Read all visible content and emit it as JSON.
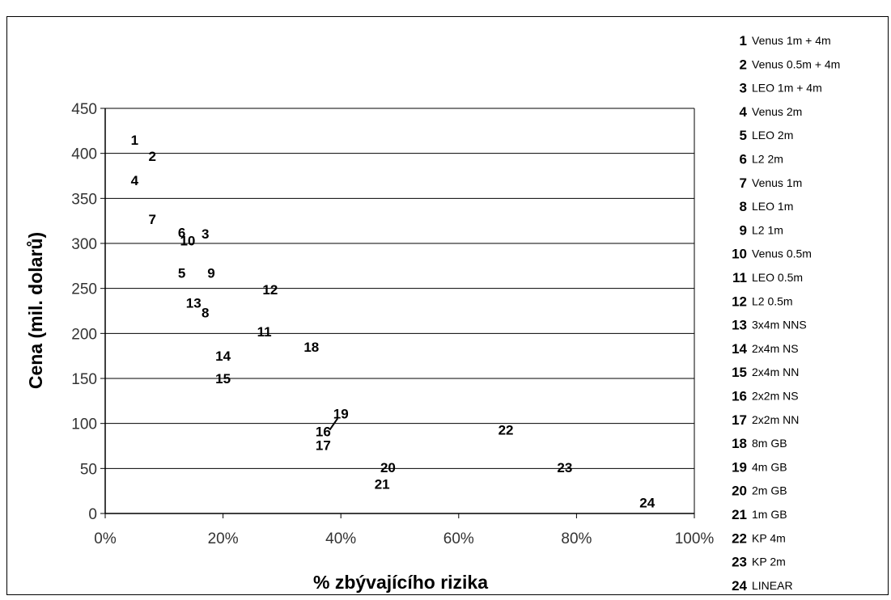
{
  "chart_data": {
    "type": "scatter",
    "xlabel": "% zbývajícího rizika",
    "ylabel": "Cena (mil. dolarů)",
    "xlim": [
      0,
      100
    ],
    "ylim": [
      0,
      450
    ],
    "x_ticks": [
      "0%",
      "20%",
      "40%",
      "60%",
      "80%",
      "100%"
    ],
    "y_ticks": [
      "0",
      "50",
      "100",
      "150",
      "200",
      "250",
      "300",
      "350",
      "400",
      "450"
    ],
    "grid": "horizontal",
    "legend_position": "right",
    "points": [
      {
        "id": "1",
        "label": "Venus 1m + 4m",
        "x": 5,
        "y": 415
      },
      {
        "id": "2",
        "label": "Venus 0.5m + 4m",
        "x": 8,
        "y": 397
      },
      {
        "id": "3",
        "label": "LEO 1m + 4m",
        "x": 17,
        "y": 311
      },
      {
        "id": "4",
        "label": "Venus 2m",
        "x": 5,
        "y": 370
      },
      {
        "id": "5",
        "label": "LEO 2m",
        "x": 13,
        "y": 267
      },
      {
        "id": "6",
        "label": "L2 2m",
        "x": 13,
        "y": 312
      },
      {
        "id": "7",
        "label": "Venus 1m",
        "x": 8,
        "y": 327
      },
      {
        "id": "8",
        "label": "LEO 1m",
        "x": 17,
        "y": 223
      },
      {
        "id": "9",
        "label": "L2 1m",
        "x": 18,
        "y": 267
      },
      {
        "id": "10",
        "label": "Venus 0.5m",
        "x": 14,
        "y": 303
      },
      {
        "id": "11",
        "label": "LEO 0.5m",
        "x": 27,
        "y": 202
      },
      {
        "id": "12",
        "label": "L2 0.5m",
        "x": 28,
        "y": 249
      },
      {
        "id": "13",
        "label": "3x4m NNS",
        "x": 15,
        "y": 234
      },
      {
        "id": "14",
        "label": "2x4m NS",
        "x": 20,
        "y": 175
      },
      {
        "id": "15",
        "label": "2x4m NN",
        "x": 20,
        "y": 150
      },
      {
        "id": "16",
        "label": "2x2m NS",
        "x": 37,
        "y": 91
      },
      {
        "id": "17",
        "label": "2x2m NN",
        "x": 37,
        "y": 76
      },
      {
        "id": "18",
        "label": "8m GB",
        "x": 35,
        "y": 185
      },
      {
        "id": "19",
        "label": "4m GB",
        "x": 40,
        "y": 111
      },
      {
        "id": "20",
        "label": "2m GB",
        "x": 48,
        "y": 51
      },
      {
        "id": "21",
        "label": "1m GB",
        "x": 47,
        "y": 33
      },
      {
        "id": "22",
        "label": "KP 4m",
        "x": 68,
        "y": 93
      },
      {
        "id": "23",
        "label": "KP 2m",
        "x": 78,
        "y": 51
      },
      {
        "id": "24",
        "label": "LINEAR",
        "x": 92,
        "y": 12
      }
    ],
    "connector": {
      "from": "16",
      "to": "19"
    }
  }
}
